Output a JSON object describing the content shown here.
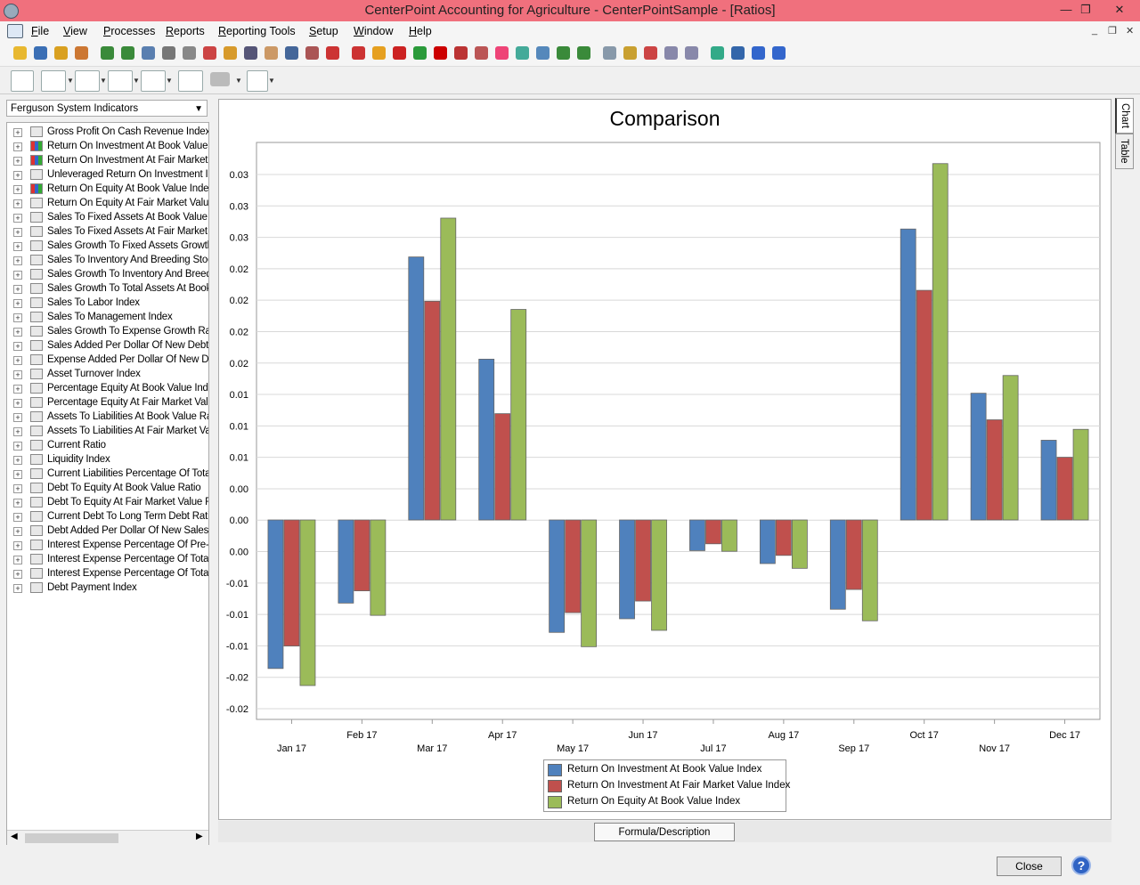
{
  "window": {
    "title": "CenterPoint Accounting for Agriculture - CenterPointSample - [Ratios]",
    "controls": {
      "minimize": "—",
      "restore": "❐",
      "close": "✕"
    }
  },
  "menubar": {
    "items": [
      "File",
      "View",
      "Processes",
      "Reports",
      "Reporting Tools",
      "Setup",
      "Window",
      "Help"
    ],
    "mdi_controls": {
      "minimize": "_",
      "restore": "❐",
      "close": "✕"
    }
  },
  "toolbar": {
    "icon_names": [
      "new-icon",
      "book-icon",
      "refresh-icon",
      "wand-icon",
      "handshake-icon",
      "handshake2-icon",
      "journal-icon",
      "list-icon",
      "print-preview-icon",
      "report-icon",
      "user-icon",
      "edit-icon",
      "people-icon",
      "grid-icon",
      "tools-icon",
      "gear-icon",
      "tag-icon",
      "folder-icon",
      "truck-icon",
      "dollar-icon",
      "stop-icon",
      "calendar-icon",
      "shuffle-icon",
      "clock-icon",
      "upload-icon",
      "window-icon",
      "handshake3-icon",
      "handshake4-icon",
      "export-icon",
      "key-icon",
      "image-icon",
      "search-icon",
      "search2-icon",
      "globe-icon",
      "globe2-icon",
      "help-icon",
      "info-icon"
    ]
  },
  "chart_toolbar": {
    "icon_names": [
      "legend-icon",
      "line-chart-icon",
      "pie-chart-icon",
      "bar-chart-icon",
      "area-chart-icon",
      "fit-icon",
      "printer-icon",
      "export-chart-icon"
    ]
  },
  "sidebar": {
    "select_value": "Ferguson System Indicators",
    "items": [
      {
        "label": "Gross Profit On Cash Revenue Index",
        "colored": false
      },
      {
        "label": "Return On Investment At Book Value I",
        "colored": true
      },
      {
        "label": "Return On Investment At Fair Market V",
        "colored": true
      },
      {
        "label": "Unleveraged Return On Investment In",
        "colored": false
      },
      {
        "label": "Return On Equity At Book Value Index",
        "colored": true
      },
      {
        "label": "Return On Equity At Fair Market Value",
        "colored": false
      },
      {
        "label": "Sales To Fixed Assets At Book Value I",
        "colored": false
      },
      {
        "label": "Sales To Fixed Assets At Fair Market V",
        "colored": false
      },
      {
        "label": "Sales Growth To Fixed Assets Growth",
        "colored": false
      },
      {
        "label": "Sales To Inventory And Breeding Stoc",
        "colored": false
      },
      {
        "label": "Sales Growth To Inventory And Breedi",
        "colored": false
      },
      {
        "label": "Sales Growth To Total Assets At Book",
        "colored": false
      },
      {
        "label": "Sales To Labor Index",
        "colored": false
      },
      {
        "label": "Sales To Management Index",
        "colored": false
      },
      {
        "label": "Sales Growth To Expense Growth Rat",
        "colored": false
      },
      {
        "label": "Sales Added Per Dollar Of New Debt F",
        "colored": false
      },
      {
        "label": "Expense Added Per Dollar Of New De",
        "colored": false
      },
      {
        "label": "Asset Turnover Index",
        "colored": false
      },
      {
        "label": "Percentage Equity At Book Value Inde",
        "colored": false
      },
      {
        "label": "Percentage Equity At Fair Market Valu",
        "colored": false
      },
      {
        "label": "Assets To Liabilities At Book Value Ra",
        "colored": false
      },
      {
        "label": "Assets To Liabilities At Fair Market Valu",
        "colored": false
      },
      {
        "label": "Current Ratio",
        "colored": false
      },
      {
        "label": "Liquidity Index",
        "colored": false
      },
      {
        "label": "Current Liabilities Percentage Of Total",
        "colored": false
      },
      {
        "label": "Debt To Equity At Book Value Ratio",
        "colored": false
      },
      {
        "label": "Debt To Equity At Fair Market Value R",
        "colored": false
      },
      {
        "label": "Current Debt To Long Term Debt Ratic",
        "colored": false
      },
      {
        "label": "Debt Added Per Dollar Of New Sales F",
        "colored": false
      },
      {
        "label": "Interest Expense Percentage Of Pre-ta",
        "colored": false
      },
      {
        "label": "Interest Expense Percentage Of Total",
        "colored": false
      },
      {
        "label": "Interest Expense Percentage Of Total",
        "colored": false
      },
      {
        "label": "Debt Payment Index",
        "colored": false
      }
    ]
  },
  "tabs": {
    "chart": "Chart",
    "table": "Table",
    "formula": "Formula/Description"
  },
  "buttons": {
    "close": "Close",
    "help": "?"
  },
  "chart_data": {
    "type": "bar",
    "title": "Comparison",
    "categories": [
      "Jan 17",
      "Feb 17",
      "Mar 17",
      "Apr 17",
      "May 17",
      "Jun 17",
      "Jul 17",
      "Aug 17",
      "Sep 17",
      "Oct 17",
      "Nov 17",
      "Dec 17"
    ],
    "series": [
      {
        "name": "Return On Investment At Book Value Index",
        "color": "#4f81bd",
        "values": [
          -0.0218,
          -0.0122,
          0.0386,
          0.0236,
          -0.0165,
          -0.0145,
          -0.0045,
          -0.0064,
          -0.0131,
          0.0427,
          0.0186,
          0.0117
        ]
      },
      {
        "name": "Return On Investment At Fair Market Value Index",
        "color": "#c0504d",
        "values": [
          -0.0185,
          -0.0104,
          0.0321,
          0.0156,
          -0.0136,
          -0.0119,
          -0.0035,
          -0.0052,
          -0.0102,
          0.0337,
          0.0147,
          0.0092
        ]
      },
      {
        "name": "Return On Equity At Book Value Index",
        "color": "#9bbb59",
        "values": [
          -0.0243,
          -0.014,
          0.0443,
          0.0309,
          -0.0186,
          -0.0162,
          -0.0046,
          -0.0071,
          -0.0148,
          0.0523,
          0.0212,
          0.0133
        ]
      }
    ],
    "ytick_labels": [
      "0.03",
      "0.03",
      "0.03",
      "0.02",
      "0.02",
      "0.02",
      "0.02",
      "0.01",
      "0.01",
      "0.01",
      "0.00",
      "0.00",
      "0.00",
      "-0.01",
      "-0.01",
      "-0.01",
      "-0.02",
      "-0.02"
    ],
    "ylim": [
      -0.03,
      0.055
    ],
    "grid": true,
    "legend": "bottom-center"
  }
}
